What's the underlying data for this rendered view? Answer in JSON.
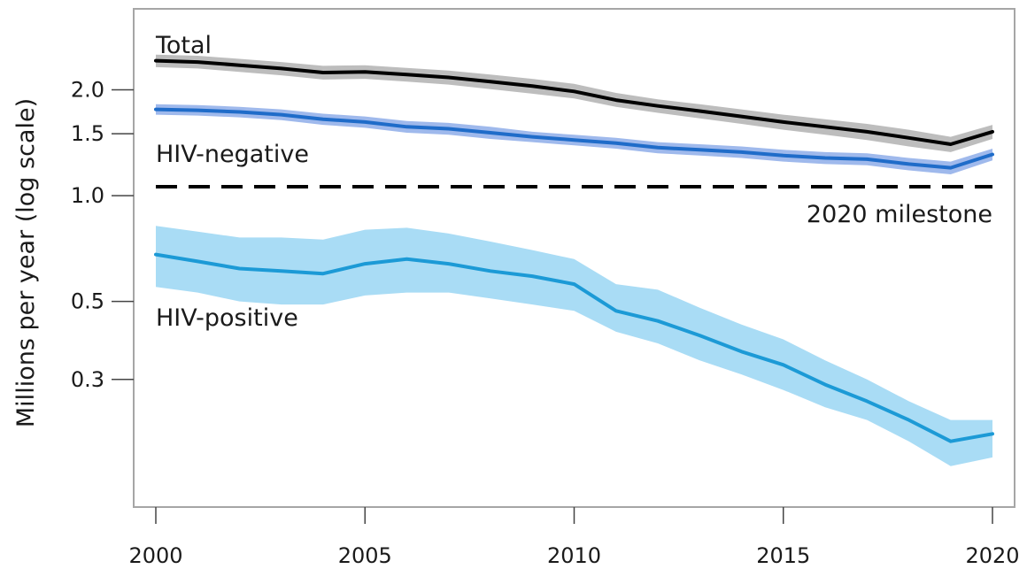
{
  "chart_data": {
    "type": "line",
    "title": "",
    "xlabel": "",
    "ylabel": "Millions per year (log scale)",
    "yscale": "log",
    "xlim": [
      2000,
      2020
    ],
    "ylim": [
      0.13,
      3.4
    ],
    "x_ticks": [
      2000,
      2005,
      2010,
      2015,
      2020
    ],
    "x_tick_labels": [
      "2000",
      "2005",
      "2010",
      "2015",
      "2020"
    ],
    "y_ticks": [
      0.3,
      0.5,
      1.0,
      1.5,
      2.0
    ],
    "y_tick_labels": [
      "0.3",
      "0.5",
      "1.0",
      "1.5",
      "2.0"
    ],
    "grid": false,
    "x": [
      2000,
      2001,
      2002,
      2003,
      2004,
      2005,
      2006,
      2007,
      2008,
      2009,
      2010,
      2011,
      2012,
      2013,
      2014,
      2015,
      2016,
      2017,
      2018,
      2019,
      2020
    ],
    "series": [
      {
        "name": "Total",
        "color": "#000000",
        "band_color": "#bdbdbd",
        "values": [
          2.42,
          2.4,
          2.35,
          2.3,
          2.24,
          2.25,
          2.21,
          2.17,
          2.11,
          2.05,
          1.98,
          1.87,
          1.8,
          1.74,
          1.68,
          1.62,
          1.57,
          1.52,
          1.46,
          1.4,
          1.52
        ],
        "lower": [
          2.32,
          2.3,
          2.25,
          2.2,
          2.14,
          2.15,
          2.11,
          2.07,
          2.01,
          1.95,
          1.89,
          1.79,
          1.72,
          1.66,
          1.6,
          1.54,
          1.49,
          1.44,
          1.38,
          1.33,
          1.45
        ],
        "upper": [
          2.52,
          2.5,
          2.45,
          2.4,
          2.34,
          2.35,
          2.31,
          2.27,
          2.21,
          2.15,
          2.08,
          1.96,
          1.88,
          1.82,
          1.76,
          1.7,
          1.65,
          1.6,
          1.54,
          1.47,
          1.59
        ]
      },
      {
        "name": "HIV-negative",
        "color": "#1f6cc9",
        "band_color": "#9fb9ec",
        "values": [
          1.76,
          1.75,
          1.73,
          1.7,
          1.65,
          1.62,
          1.57,
          1.55,
          1.51,
          1.47,
          1.44,
          1.41,
          1.37,
          1.35,
          1.33,
          1.3,
          1.28,
          1.27,
          1.23,
          1.2,
          1.31
        ],
        "lower": [
          1.7,
          1.69,
          1.67,
          1.64,
          1.59,
          1.56,
          1.51,
          1.49,
          1.45,
          1.42,
          1.39,
          1.36,
          1.32,
          1.3,
          1.28,
          1.25,
          1.23,
          1.22,
          1.18,
          1.15,
          1.26
        ],
        "upper": [
          1.82,
          1.81,
          1.79,
          1.76,
          1.71,
          1.68,
          1.63,
          1.61,
          1.57,
          1.52,
          1.49,
          1.46,
          1.42,
          1.4,
          1.38,
          1.35,
          1.33,
          1.32,
          1.28,
          1.25,
          1.36
        ]
      },
      {
        "name": "HIV-positive",
        "color": "#1c9ad6",
        "band_color": "#a9dcf5",
        "values": [
          0.68,
          0.65,
          0.62,
          0.61,
          0.6,
          0.64,
          0.66,
          0.64,
          0.61,
          0.59,
          0.56,
          0.47,
          0.44,
          0.4,
          0.36,
          0.33,
          0.29,
          0.26,
          0.23,
          0.2,
          0.21
        ],
        "lower": [
          0.55,
          0.53,
          0.5,
          0.49,
          0.49,
          0.52,
          0.53,
          0.53,
          0.51,
          0.49,
          0.47,
          0.41,
          0.38,
          0.34,
          0.31,
          0.28,
          0.25,
          0.23,
          0.2,
          0.17,
          0.18
        ],
        "upper": [
          0.82,
          0.79,
          0.76,
          0.76,
          0.75,
          0.8,
          0.81,
          0.78,
          0.74,
          0.7,
          0.66,
          0.56,
          0.54,
          0.48,
          0.43,
          0.39,
          0.34,
          0.3,
          0.26,
          0.23,
          0.23
        ]
      }
    ],
    "reference_line": {
      "label": "2020 milestone",
      "value": 1.06,
      "color": "#000000"
    }
  }
}
